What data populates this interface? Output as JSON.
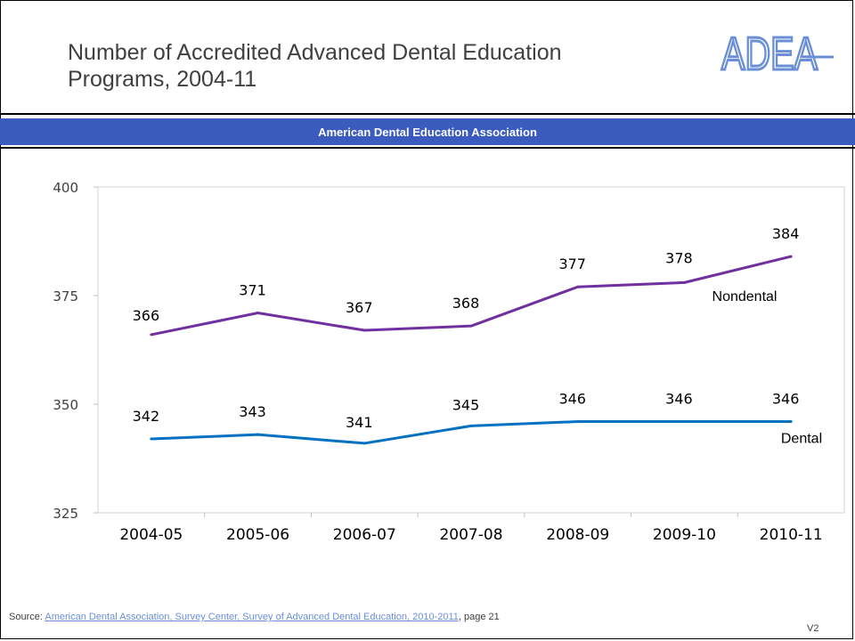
{
  "slide": {
    "title_line1": "Number of Accredited Advanced Dental Education",
    "title_line2": "Programs, 2004-11",
    "logo_text": "ADEA",
    "band_text": "American Dental Education Association",
    "source_prefix": "Source: ",
    "source_link": "American Dental Association, Survey Center, Survey of Advanced Dental Education, 2010-2011",
    "source_suffix": ", page 21",
    "version": "V2"
  },
  "colors": {
    "band": "#3b5bbf",
    "logo": "#6a8fd6",
    "nondental": "#7030a0",
    "dental": "#0070c0",
    "text": "#404040"
  },
  "chart_data": {
    "type": "line",
    "categories": [
      "2004-05",
      "2005-06",
      "2006-07",
      "2007-08",
      "2008-09",
      "2009-10",
      "2010-11"
    ],
    "series": [
      {
        "name": "Nondental",
        "values": [
          366,
          371,
          367,
          368,
          377,
          378,
          384
        ],
        "color": "#7030a0"
      },
      {
        "name": "Dental",
        "values": [
          342,
          343,
          341,
          345,
          346,
          346,
          346
        ],
        "color": "#0070c0"
      }
    ],
    "ylim": [
      325,
      400
    ],
    "yticks": [
      325,
      350,
      375,
      400
    ],
    "grid": false,
    "legend": "inline labels at right end of series"
  }
}
